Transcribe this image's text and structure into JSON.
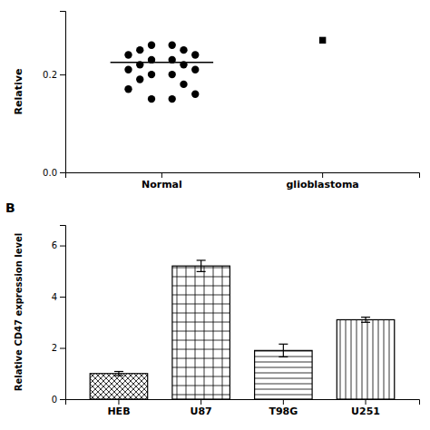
{
  "chart_data": [
    {
      "type": "scatter",
      "categories": [
        "Normal",
        "glioblastoma"
      ],
      "values": [
        [
          0.26,
          0.26,
          0.25,
          0.25,
          0.24,
          0.24,
          0.23,
          0.23,
          0.22,
          0.22,
          0.21,
          0.21,
          0.2,
          0.2,
          0.19,
          0.18,
          0.17,
          0.16,
          0.15,
          0.15
        ],
        [
          0.27
        ]
      ],
      "means": [
        0.225,
        null
      ],
      "y_label": "Relative",
      "ylim": [
        0.0,
        0.33
      ],
      "yticks": [
        {
          "value": 0.0,
          "label": "0.0"
        },
        0.2
      ],
      "color": "#000000",
      "grid": false
    },
    {
      "type": "bar",
      "categories": [
        "HEB",
        "U87",
        "T98G",
        "U251"
      ],
      "values": [
        1.0,
        5.2,
        1.9,
        3.1
      ],
      "errors": [
        0.08,
        0.22,
        0.25,
        0.1
      ],
      "y_label": "Relative CD47 expression level",
      "ylim": [
        0,
        6.8
      ],
      "yticks": [
        0,
        2,
        4,
        6
      ],
      "annotations": [
        "B"
      ],
      "color": "#000000",
      "grid": false
    }
  ]
}
